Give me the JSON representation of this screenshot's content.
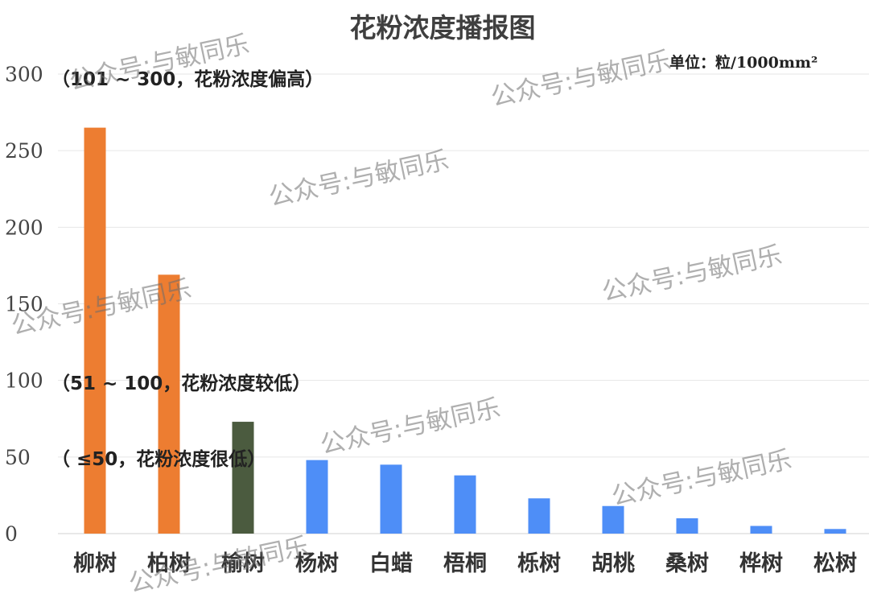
{
  "title": "花粉浓度播报图",
  "unit_label": "单位：粒/1000mm²",
  "bands": {
    "high": "（101 ~ 300，花粉浓度偏高）",
    "mid": "（51 ~ 100，花粉浓度较低）",
    "low": "（ ≤50，花粉浓度很低）"
  },
  "watermark": "公众号:与敏同乐",
  "chart_data": {
    "type": "bar",
    "title": "花粉浓度播报图",
    "categories": [
      "柳树",
      "柏树",
      "榆树",
      "杨树",
      "白蜡",
      "梧桐",
      "栎树",
      "胡桃",
      "桑树",
      "桦树",
      "松树"
    ],
    "values": [
      265,
      169,
      73,
      48,
      45,
      38,
      23,
      18,
      10,
      5,
      3
    ],
    "bar_colors": [
      "#ed7d31",
      "#ed7d31",
      "#4b5b3f",
      "#4e8ef7",
      "#4e8ef7",
      "#4e8ef7",
      "#4e8ef7",
      "#4e8ef7",
      "#4e8ef7",
      "#4e8ef7",
      "#4e8ef7"
    ],
    "ylim": [
      0,
      300
    ],
    "yticks": [
      0,
      50,
      100,
      150,
      200,
      250,
      300
    ],
    "grid": true,
    "xlabel": "",
    "ylabel": ""
  }
}
